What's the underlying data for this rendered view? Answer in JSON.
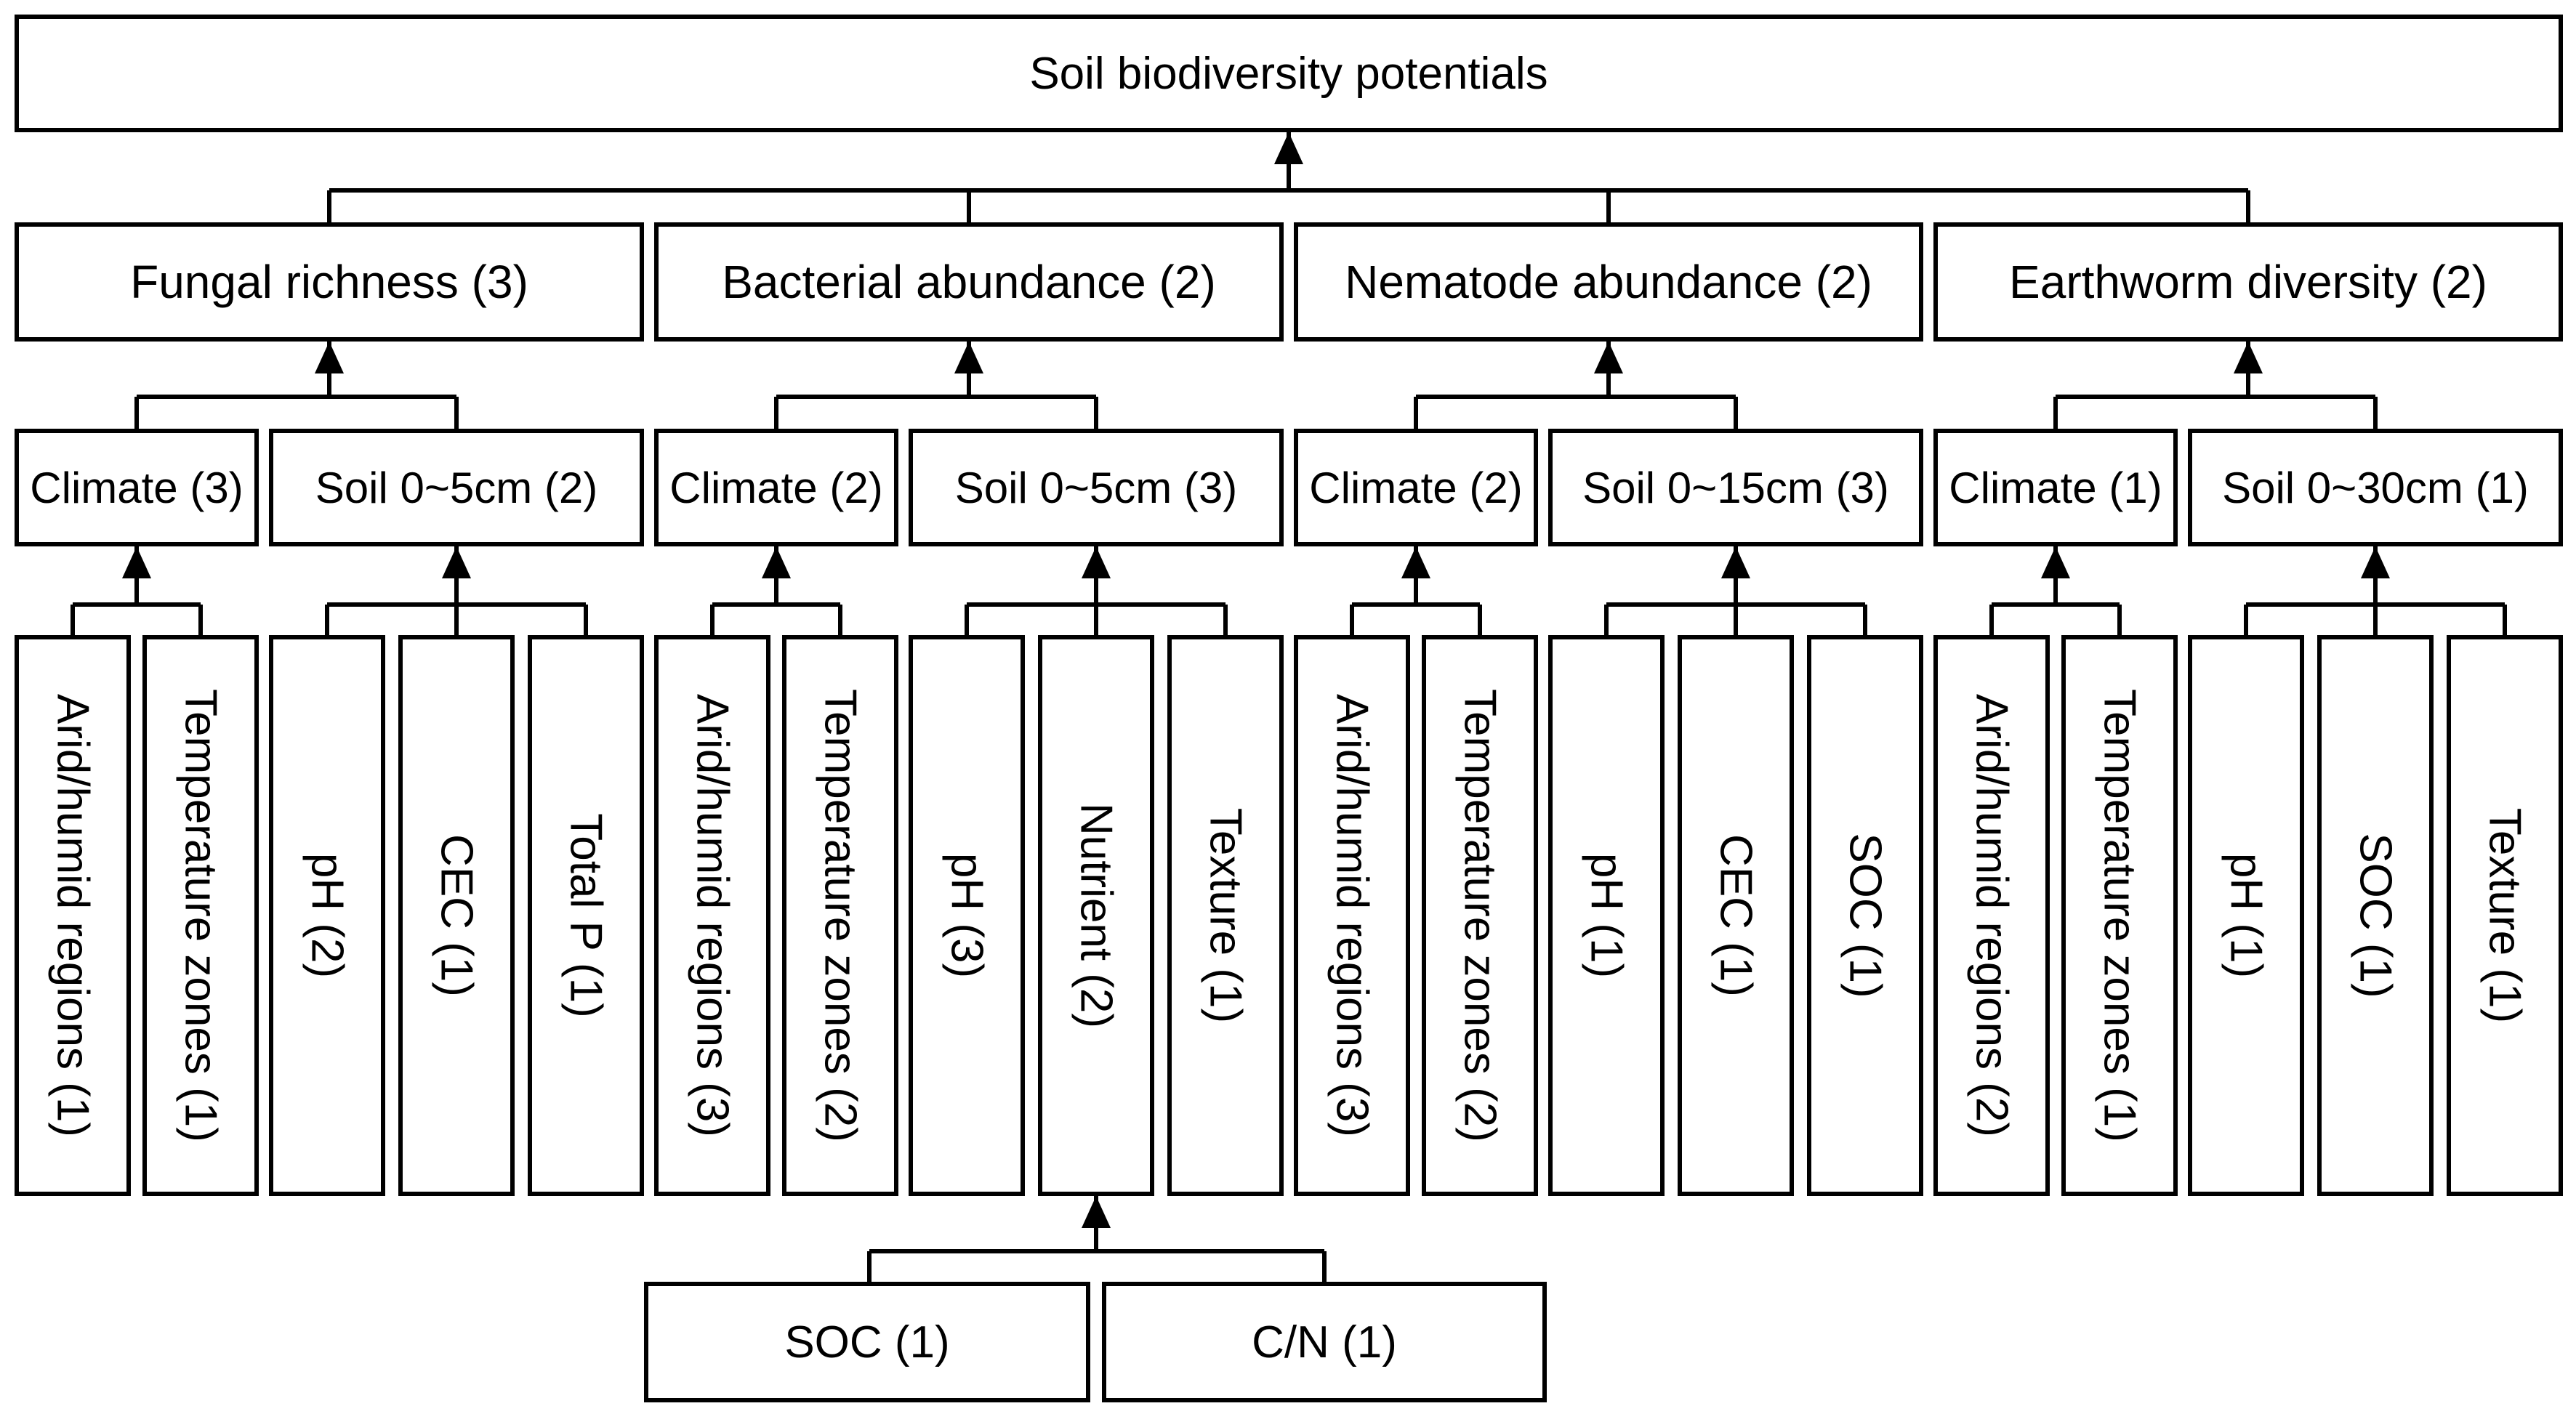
{
  "root": {
    "label": "Soil biodiversity potentials"
  },
  "groups": [
    {
      "label": "Fungal richness (3)",
      "subs": [
        {
          "label": "Climate (3)",
          "leaves": [
            "Arid/humid regions (1)",
            "Temperature zones (1)"
          ]
        },
        {
          "label": "Soil 0~5cm (2)",
          "leaves": [
            "pH (2)",
            "CEC (1)",
            "Total P (1)"
          ]
        }
      ]
    },
    {
      "label": "Bacterial abundance (2)",
      "subs": [
        {
          "label": "Climate (2)",
          "leaves": [
            "Arid/humid regions (3)",
            "Temperature zones (2)"
          ]
        },
        {
          "label": "Soil 0~5cm (3)",
          "leaves": [
            "pH (3)",
            "Nutrient (2)",
            "Texture (1)"
          ]
        }
      ]
    },
    {
      "label": "Nematode abundance (2)",
      "subs": [
        {
          "label": "Climate (2)",
          "leaves": [
            "Arid/humid regions (3)",
            "Temperature zones (2)"
          ]
        },
        {
          "label": "Soil 0~15cm (3)",
          "leaves": [
            "pH (1)",
            "CEC (1)",
            "SOC (1)"
          ]
        }
      ]
    },
    {
      "label": "Earthworm diversity (2)",
      "subs": [
        {
          "label": "Climate (1)",
          "leaves": [
            "Arid/humid regions (2)",
            "Temperature zones (1)"
          ]
        },
        {
          "label": "Soil 0~30cm (1)",
          "leaves": [
            "pH (1)",
            "SOC (1)",
            "Texture (1)"
          ]
        }
      ]
    }
  ],
  "nutrient_children": [
    "SOC (1)",
    "C/N (1)"
  ]
}
